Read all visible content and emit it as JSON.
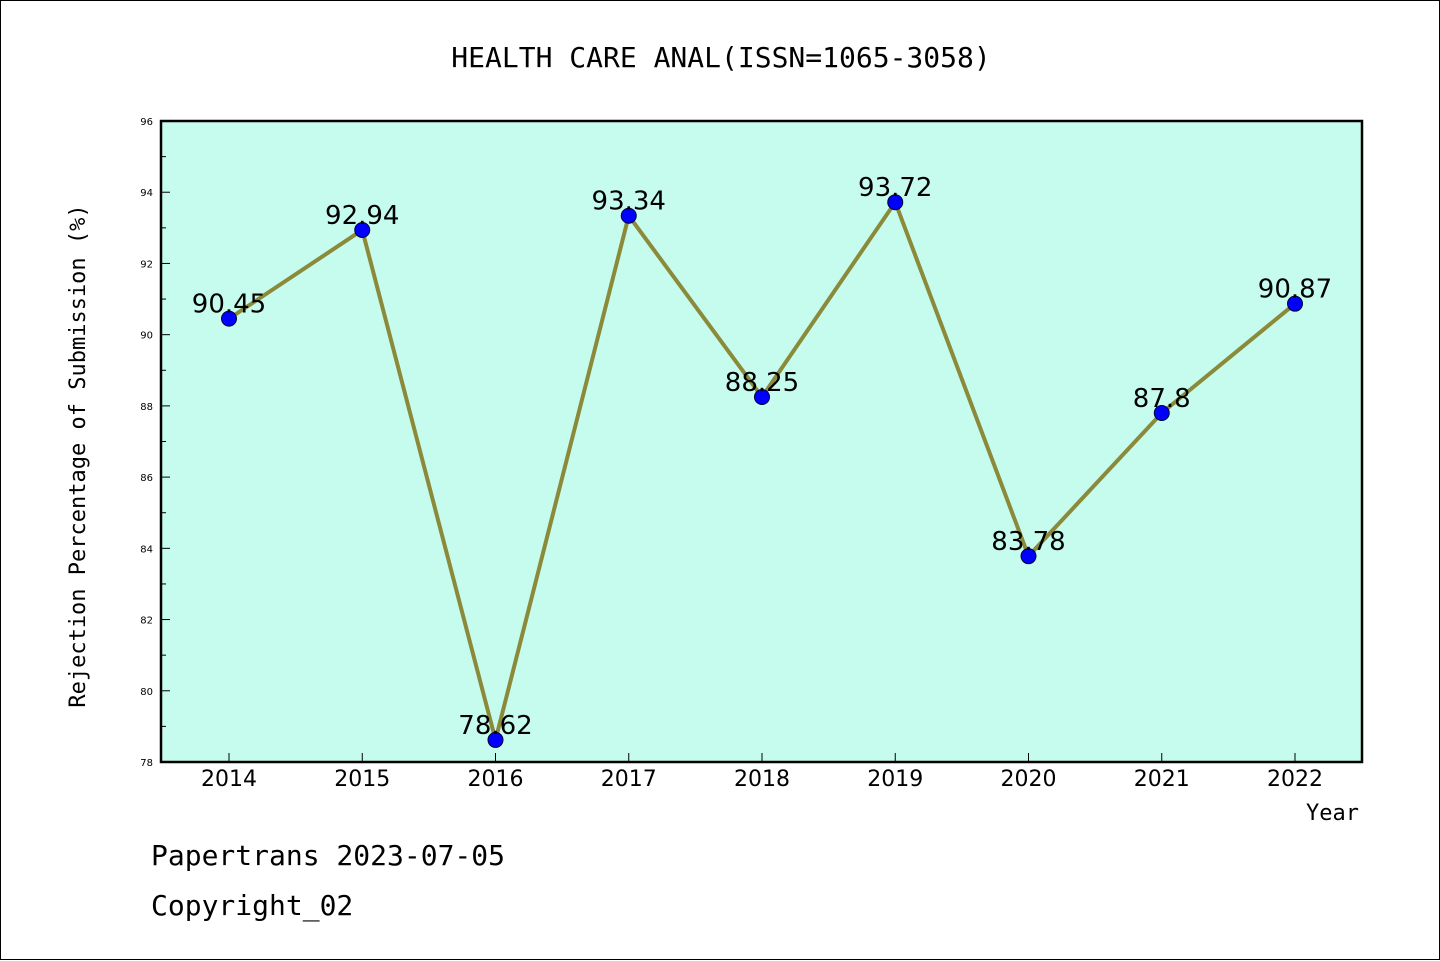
{
  "chart_data": {
    "type": "line",
    "title": "HEALTH CARE ANAL(ISSN=1065-3058)",
    "xlabel": "Year",
    "ylabel": "Rejection Percentage of Submission (%)",
    "categories": [
      "2014",
      "2015",
      "2016",
      "2017",
      "2018",
      "2019",
      "2020",
      "2021",
      "2022"
    ],
    "series": [
      {
        "values": [
          90.45,
          92.94,
          78.62,
          93.34,
          88.25,
          93.72,
          83.78,
          87.8,
          90.87
        ]
      }
    ],
    "data_labels": [
      "90.45",
      "92.94",
      "78.62",
      "93.34",
      "88.25",
      "93.72",
      "83.78",
      "87.8",
      "90.87"
    ],
    "yticks": [
      "78",
      "80",
      "82",
      "84",
      "86",
      "88",
      "90",
      "92",
      "94",
      "96"
    ],
    "ylim": [
      78,
      96
    ],
    "grid": false,
    "colors": {
      "plot_bg": "#c6fcee",
      "line": "#8b8a3a",
      "marker": "#0000ff"
    }
  },
  "footer": {
    "line1": "Papertrans 2023-07-05",
    "line2": "Copyright_02"
  }
}
